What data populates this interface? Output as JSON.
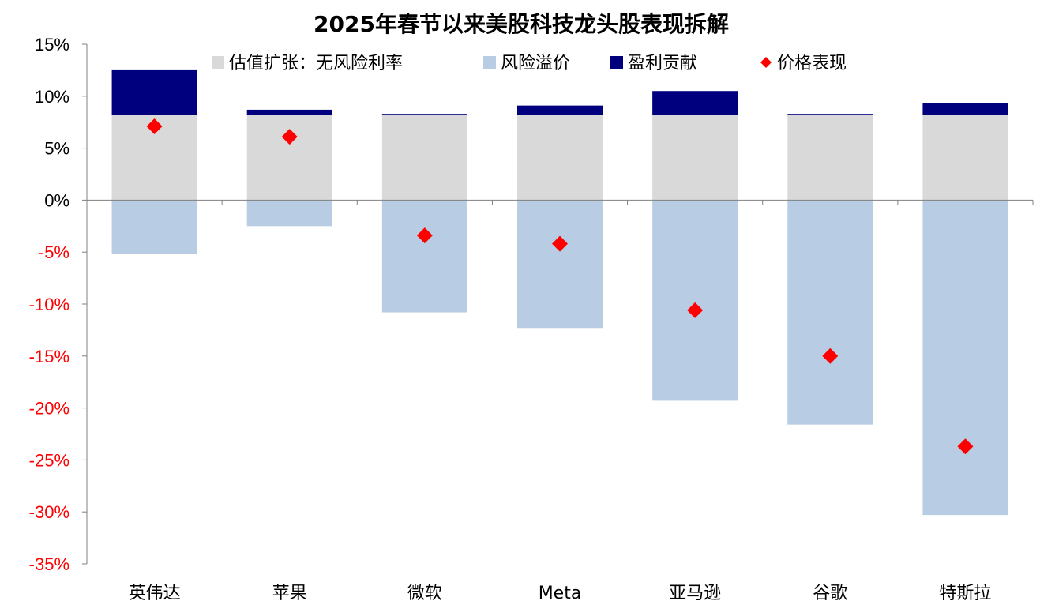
{
  "chart_data": {
    "type": "bar",
    "stacked": true,
    "title": "2025年春节以来美股科技龙头股表现拆解",
    "categories": [
      "英伟达",
      "苹果",
      "微软",
      "Meta",
      "亚马逊",
      "谷歌",
      "特斯拉"
    ],
    "series": [
      {
        "name": "估值扩张：无风险利率",
        "kind": "bar",
        "color": "#d9d9d9",
        "values": [
          8.2,
          8.2,
          8.2,
          8.2,
          8.2,
          8.2,
          8.2
        ]
      },
      {
        "name": "风险溢价",
        "kind": "bar",
        "color": "#b8cce4",
        "values": [
          -5.2,
          -2.5,
          -10.8,
          -12.3,
          -19.3,
          -21.6,
          -30.3
        ]
      },
      {
        "name": "盈利贡献",
        "kind": "bar",
        "color": "#00007f",
        "values": [
          4.3,
          0.5,
          0.1,
          0.9,
          2.3,
          0.1,
          1.1
        ]
      },
      {
        "name": "价格表现",
        "kind": "marker",
        "marker": "diamond",
        "color": "#ff0000",
        "values": [
          7.1,
          6.1,
          -3.4,
          -4.2,
          -10.6,
          -15.0,
          -23.7
        ]
      }
    ],
    "y_axis": {
      "ylim": [
        -35,
        15
      ],
      "tick_labels": [
        "15%",
        "10%",
        "5%",
        "0%",
        "-5%",
        "-10%",
        "-15%",
        "-20%",
        "-25%",
        "-30%",
        "-35%"
      ],
      "positive_color": "#000000",
      "negative_color": "#ff0000"
    },
    "legend_position": "top",
    "grid": false
  }
}
